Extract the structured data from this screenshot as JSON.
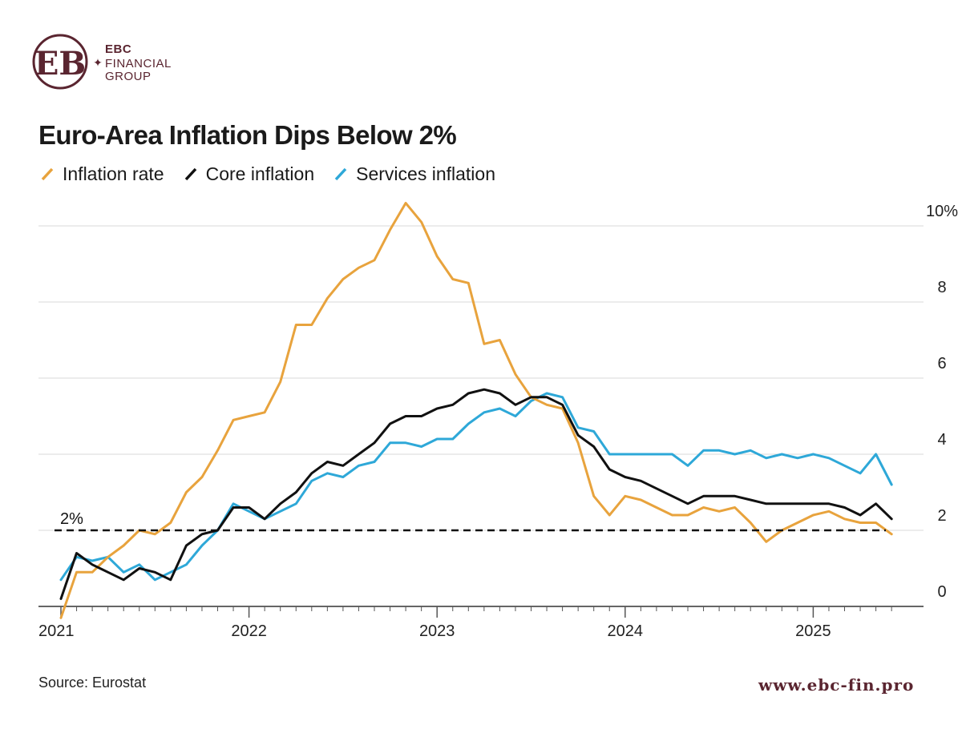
{
  "brand": {
    "line1": "EBC",
    "line2": "FINANCIAL",
    "line3": "GROUP",
    "color": "#5a2530"
  },
  "source": "Source: Eurostat",
  "website": "www.ebc-fin.pro",
  "chart_data": {
    "type": "line",
    "title": "Euro-Area Inflation Dips Below 2%",
    "xlabel": "",
    "ylabel": "",
    "ylim": [
      0,
      10
    ],
    "y_ticks": [
      {
        "value": 10,
        "label": "10%"
      },
      {
        "value": 8,
        "label": "8"
      },
      {
        "value": 6,
        "label": "6"
      },
      {
        "value": 4,
        "label": "4"
      },
      {
        "value": 2,
        "label": "2"
      },
      {
        "value": 0,
        "label": "0"
      }
    ],
    "x_ticks": [
      {
        "index": 0,
        "label": "2021"
      },
      {
        "index": 12,
        "label": "2022"
      },
      {
        "index": 24,
        "label": "2023"
      },
      {
        "index": 36,
        "label": "2024"
      },
      {
        "index": 48,
        "label": "2025"
      }
    ],
    "reference_line": {
      "value": 2,
      "label": "2%"
    },
    "legend_position": "top-left",
    "grid": true,
    "series": [
      {
        "name": "Inflation rate",
        "color": "#e8a33d",
        "values": [
          -0.3,
          0.9,
          0.9,
          1.3,
          1.6,
          2.0,
          1.9,
          2.2,
          3.0,
          3.4,
          4.1,
          4.9,
          5.0,
          5.1,
          5.9,
          7.4,
          7.4,
          8.1,
          8.6,
          8.9,
          9.1,
          9.9,
          10.6,
          10.1,
          9.2,
          8.6,
          8.5,
          6.9,
          7.0,
          6.1,
          5.5,
          5.3,
          5.2,
          4.3,
          2.9,
          2.4,
          2.9,
          2.8,
          2.6,
          2.4,
          2.4,
          2.6,
          2.5,
          2.6,
          2.2,
          1.7,
          2.0,
          2.2,
          2.4,
          2.5,
          2.3,
          2.2,
          2.2,
          1.9
        ]
      },
      {
        "name": "Core inflation",
        "color": "#111111",
        "values": [
          0.2,
          1.4,
          1.1,
          0.9,
          0.7,
          1.0,
          0.9,
          0.7,
          1.6,
          1.9,
          2.0,
          2.6,
          2.6,
          2.3,
          2.7,
          3.0,
          3.5,
          3.8,
          3.7,
          4.0,
          4.3,
          4.8,
          5.0,
          5.0,
          5.2,
          5.3,
          5.6,
          5.7,
          5.6,
          5.3,
          5.5,
          5.5,
          5.3,
          4.5,
          4.2,
          3.6,
          3.4,
          3.3,
          3.1,
          2.9,
          2.7,
          2.9,
          2.9,
          2.9,
          2.8,
          2.7,
          2.7,
          2.7,
          2.7,
          2.7,
          2.6,
          2.4,
          2.7,
          2.3
        ]
      },
      {
        "name": "Services inflation",
        "color": "#2ea8d8",
        "values": [
          0.7,
          1.3,
          1.2,
          1.3,
          0.9,
          1.1,
          0.7,
          0.9,
          1.1,
          1.6,
          2.0,
          2.7,
          2.5,
          2.3,
          2.5,
          2.7,
          3.3,
          3.5,
          3.4,
          3.7,
          3.8,
          4.3,
          4.3,
          4.2,
          4.4,
          4.4,
          4.8,
          5.1,
          5.2,
          5.0,
          5.4,
          5.6,
          5.5,
          4.7,
          4.6,
          4.0,
          4.0,
          4.0,
          4.0,
          4.0,
          3.7,
          4.1,
          4.1,
          4.0,
          4.1,
          3.9,
          4.0,
          3.9,
          4.0,
          3.9,
          3.7,
          3.5,
          4.0,
          3.2
        ]
      }
    ]
  }
}
